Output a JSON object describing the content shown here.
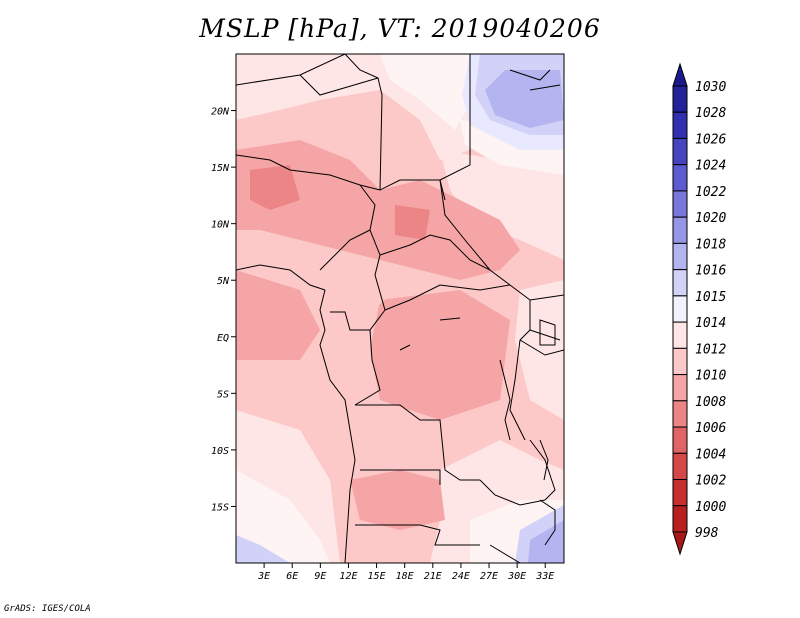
{
  "title": "MSLP [hPa], VT: 2019040206",
  "footer": "GrADS: IGES/COLA",
  "map": {
    "lon_range": [
      0,
      35
    ],
    "lat_range": [
      -20,
      25
    ],
    "lat_ticks": [
      {
        "value": 20,
        "label": "20N"
      },
      {
        "value": 15,
        "label": "15N"
      },
      {
        "value": 10,
        "label": "10N"
      },
      {
        "value": 5,
        "label": "5N"
      },
      {
        "value": 0,
        "label": "EQ"
      },
      {
        "value": -5,
        "label": "5S"
      },
      {
        "value": -10,
        "label": "10S"
      },
      {
        "value": -15,
        "label": "15S"
      }
    ],
    "lon_ticks": [
      {
        "value": 3,
        "label": "3E"
      },
      {
        "value": 6,
        "label": "6E"
      },
      {
        "value": 9,
        "label": "9E"
      },
      {
        "value": 12,
        "label": "12E"
      },
      {
        "value": 15,
        "label": "15E"
      },
      {
        "value": 18,
        "label": "18E"
      },
      {
        "value": 21,
        "label": "21E"
      },
      {
        "value": 24,
        "label": "24E"
      },
      {
        "value": 27,
        "label": "27E"
      },
      {
        "value": 30,
        "label": "30E"
      },
      {
        "value": 33,
        "label": "33E"
      }
    ]
  },
  "colorbar": {
    "labels": [
      "1030",
      "1028",
      "1026",
      "1024",
      "1022",
      "1020",
      "1018",
      "1016",
      "1015",
      "1014",
      "1012",
      "1010",
      "1008",
      "1006",
      "1004",
      "1002",
      "1000",
      "998"
    ],
    "colors": [
      "#1a1a8c",
      "#22229a",
      "#3030b0",
      "#4545c0",
      "#5c5cd0",
      "#7878dc",
      "#9696e6",
      "#b4b4f0",
      "#d2d2f8",
      "#f2f2ff",
      "#ffe6e6",
      "#fcc8c8",
      "#f5a5a5",
      "#ec8585",
      "#e06464",
      "#d44848",
      "#c63030",
      "#b82020",
      "#a81818"
    ]
  }
}
